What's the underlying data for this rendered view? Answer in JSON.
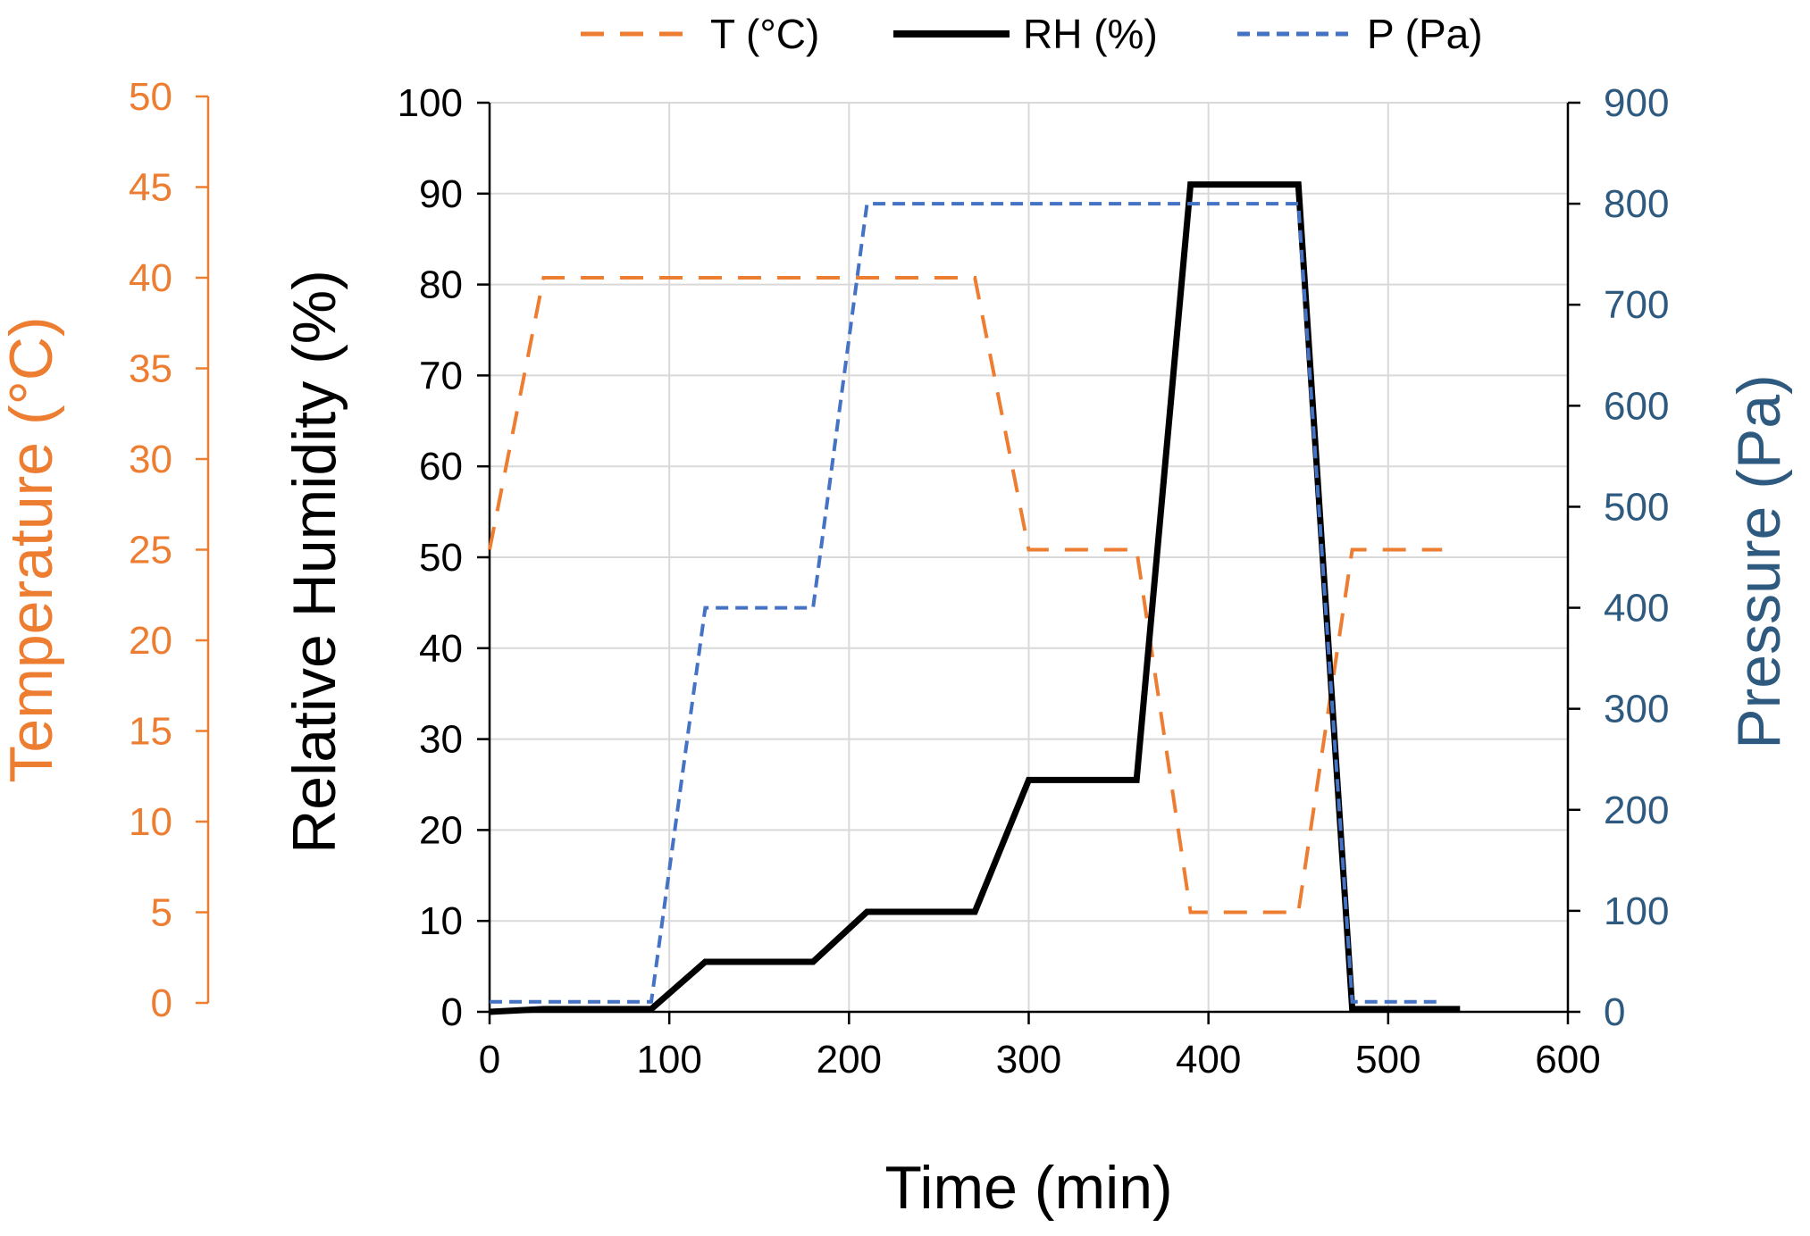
{
  "colors": {
    "temperature": "#ED7D31",
    "humidity": "#000000",
    "pressure": "#4472C4",
    "pressure_axis": "#2F5A80",
    "grid": "#D9D9D9"
  },
  "chart_data": {
    "type": "line",
    "xlabel": "Time (min)",
    "grid": true,
    "legend_position": "top-center",
    "x_axis": {
      "min": 0,
      "max": 600,
      "step": 100,
      "ticks": [
        "0",
        "100",
        "200",
        "300",
        "400",
        "500",
        "600"
      ]
    },
    "y_axes": {
      "temperature": {
        "label": "Temperature (°C)",
        "min": 0,
        "max": 50,
        "step": 5,
        "ticks": [
          "0",
          "5",
          "10",
          "15",
          "20",
          "25",
          "30",
          "35",
          "40",
          "45",
          "50"
        ]
      },
      "humidity": {
        "label": "Relative Humidity (%)",
        "min": 0,
        "max": 100,
        "step": 10,
        "ticks": [
          "0",
          "10",
          "20",
          "30",
          "40",
          "50",
          "60",
          "70",
          "80",
          "90",
          "100"
        ]
      },
      "pressure": {
        "label": "Pressure (Pa)",
        "min": 0,
        "max": 900,
        "step": 100,
        "ticks": [
          "0",
          "100",
          "200",
          "300",
          "400",
          "500",
          "600",
          "700",
          "800",
          "900"
        ]
      }
    },
    "series": [
      {
        "name": "T (°C)",
        "axis": "temperature",
        "style": "dashed",
        "points": [
          [
            0,
            25
          ],
          [
            30,
            40
          ],
          [
            270,
            40
          ],
          [
            300,
            25
          ],
          [
            360,
            25
          ],
          [
            390,
            5
          ],
          [
            450,
            5
          ],
          [
            480,
            25
          ],
          [
            530,
            25
          ]
        ]
      },
      {
        "name": "RH (%)",
        "axis": "humidity",
        "style": "solid",
        "points": [
          [
            0,
            0
          ],
          [
            30,
            0.3
          ],
          [
            90,
            0.3
          ],
          [
            120,
            5.5
          ],
          [
            180,
            5.5
          ],
          [
            210,
            11
          ],
          [
            270,
            11
          ],
          [
            300,
            25.5
          ],
          [
            360,
            25.5
          ],
          [
            390,
            91
          ],
          [
            450,
            91
          ],
          [
            480,
            0.3
          ],
          [
            540,
            0.3
          ]
        ]
      },
      {
        "name": "P (Pa)",
        "axis": "pressure",
        "style": "dotted",
        "points": [
          [
            0,
            10
          ],
          [
            90,
            10
          ],
          [
            120,
            400
          ],
          [
            180,
            400
          ],
          [
            210,
            800
          ],
          [
            450,
            800
          ],
          [
            480,
            10
          ],
          [
            530,
            10
          ]
        ]
      }
    ]
  }
}
